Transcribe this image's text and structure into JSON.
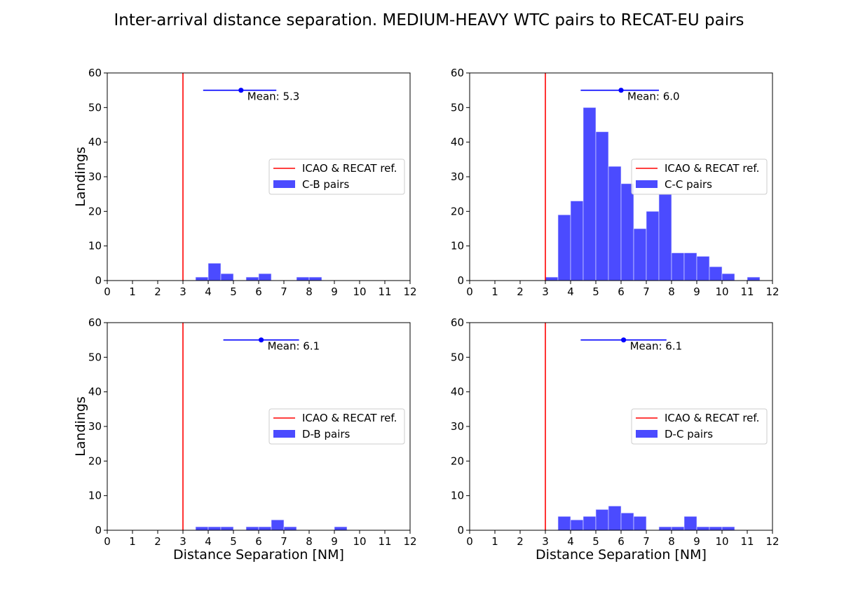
{
  "title": "Inter-arrival distance separation. MEDIUM-HEAVY WTC pairs to RECAT-EU pairs",
  "chart_data": [
    {
      "type": "bar",
      "panel": "top-left",
      "xlabel": "",
      "ylabel": "Landings",
      "xlim": [
        0,
        12
      ],
      "ylim": [
        0,
        60
      ],
      "xticks": [
        0,
        1,
        2,
        3,
        4,
        5,
        6,
        7,
        8,
        9,
        10,
        11,
        12
      ],
      "yticks": [
        0,
        10,
        20,
        30,
        40,
        50,
        60
      ],
      "bin_width": 0.5,
      "bins": [
        {
          "x": 3.5,
          "count": 1
        },
        {
          "x": 4.0,
          "count": 5
        },
        {
          "x": 4.5,
          "count": 2
        },
        {
          "x": 5.5,
          "count": 1
        },
        {
          "x": 6.0,
          "count": 2
        },
        {
          "x": 7.5,
          "count": 1
        },
        {
          "x": 8.0,
          "count": 1
        }
      ],
      "reference_line": {
        "x": 3,
        "label": "ICAO & RECAT ref.",
        "color": "#ff0000"
      },
      "mean": {
        "x": 5.3,
        "y": 55,
        "err_low": 3.8,
        "err_high": 6.7,
        "label": "Mean: 5.3",
        "color": "#0000ff"
      },
      "series_label": "C-B pairs",
      "bar_color": "#4b4bff",
      "legend": "right"
    },
    {
      "type": "bar",
      "panel": "top-right",
      "xlabel": "",
      "ylabel": "",
      "xlim": [
        0,
        12
      ],
      "ylim": [
        0,
        60
      ],
      "xticks": [
        0,
        1,
        2,
        3,
        4,
        5,
        6,
        7,
        8,
        9,
        10,
        11,
        12
      ],
      "yticks": [
        0,
        10,
        20,
        30,
        40,
        50,
        60
      ],
      "bin_width": 0.5,
      "bins": [
        {
          "x": 3.0,
          "count": 1
        },
        {
          "x": 3.5,
          "count": 19
        },
        {
          "x": 4.0,
          "count": 23
        },
        {
          "x": 4.5,
          "count": 50
        },
        {
          "x": 5.0,
          "count": 43
        },
        {
          "x": 5.5,
          "count": 33
        },
        {
          "x": 6.0,
          "count": 28
        },
        {
          "x": 6.5,
          "count": 15
        },
        {
          "x": 7.0,
          "count": 20
        },
        {
          "x": 7.5,
          "count": 25
        },
        {
          "x": 8.0,
          "count": 8
        },
        {
          "x": 8.5,
          "count": 8
        },
        {
          "x": 9.0,
          "count": 7
        },
        {
          "x": 9.5,
          "count": 4
        },
        {
          "x": 10.0,
          "count": 2
        },
        {
          "x": 11.0,
          "count": 1
        }
      ],
      "reference_line": {
        "x": 3,
        "label": "ICAO & RECAT ref.",
        "color": "#ff0000"
      },
      "mean": {
        "x": 6.0,
        "y": 55,
        "err_low": 4.4,
        "err_high": 7.5,
        "label": "Mean: 6.0",
        "color": "#0000ff"
      },
      "series_label": "C-C pairs",
      "bar_color": "#4b4bff",
      "legend": "right"
    },
    {
      "type": "bar",
      "panel": "bottom-left",
      "xlabel": "Distance Separation [NM]",
      "ylabel": "Landings",
      "xlim": [
        0,
        12
      ],
      "ylim": [
        0,
        60
      ],
      "xticks": [
        0,
        1,
        2,
        3,
        4,
        5,
        6,
        7,
        8,
        9,
        10,
        11,
        12
      ],
      "yticks": [
        0,
        10,
        20,
        30,
        40,
        50,
        60
      ],
      "bin_width": 0.5,
      "bins": [
        {
          "x": 3.5,
          "count": 1
        },
        {
          "x": 4.0,
          "count": 1
        },
        {
          "x": 4.5,
          "count": 1
        },
        {
          "x": 5.5,
          "count": 1
        },
        {
          "x": 6.0,
          "count": 1
        },
        {
          "x": 6.5,
          "count": 3
        },
        {
          "x": 7.0,
          "count": 1
        },
        {
          "x": 9.0,
          "count": 1
        }
      ],
      "reference_line": {
        "x": 3,
        "label": "ICAO & RECAT ref.",
        "color": "#ff0000"
      },
      "mean": {
        "x": 6.1,
        "y": 55,
        "err_low": 4.6,
        "err_high": 7.6,
        "label": "Mean: 6.1",
        "color": "#0000ff"
      },
      "series_label": "D-B pairs",
      "bar_color": "#4b4bff",
      "legend": "right"
    },
    {
      "type": "bar",
      "panel": "bottom-right",
      "xlabel": "Distance Separation [NM]",
      "ylabel": "",
      "xlim": [
        0,
        12
      ],
      "ylim": [
        0,
        60
      ],
      "xticks": [
        0,
        1,
        2,
        3,
        4,
        5,
        6,
        7,
        8,
        9,
        10,
        11,
        12
      ],
      "yticks": [
        0,
        10,
        20,
        30,
        40,
        50,
        60
      ],
      "bin_width": 0.5,
      "bins": [
        {
          "x": 3.5,
          "count": 4
        },
        {
          "x": 4.0,
          "count": 3
        },
        {
          "x": 4.5,
          "count": 4
        },
        {
          "x": 5.0,
          "count": 6
        },
        {
          "x": 5.5,
          "count": 7
        },
        {
          "x": 6.0,
          "count": 5
        },
        {
          "x": 6.5,
          "count": 4
        },
        {
          "x": 7.5,
          "count": 1
        },
        {
          "x": 8.0,
          "count": 1
        },
        {
          "x": 8.5,
          "count": 4
        },
        {
          "x": 9.0,
          "count": 1
        },
        {
          "x": 9.5,
          "count": 1
        },
        {
          "x": 10.0,
          "count": 1
        }
      ],
      "reference_line": {
        "x": 3,
        "label": "ICAO & RECAT ref.",
        "color": "#ff0000"
      },
      "mean": {
        "x": 6.1,
        "y": 55,
        "err_low": 4.4,
        "err_high": 7.8,
        "label": "Mean: 6.1",
        "color": "#0000ff"
      },
      "series_label": "D-C pairs",
      "bar_color": "#4b4bff",
      "legend": "right"
    }
  ]
}
